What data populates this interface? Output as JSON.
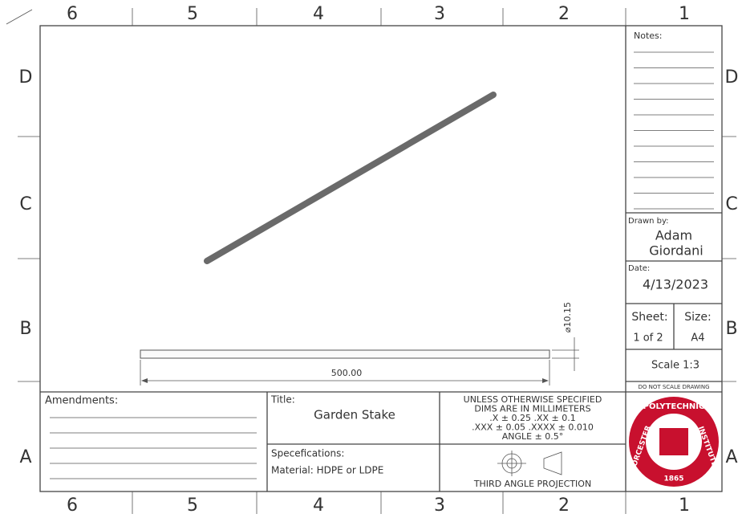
{
  "columns": [
    "6",
    "5",
    "4",
    "3",
    "2",
    "1"
  ],
  "rows": [
    "D",
    "C",
    "B",
    "A"
  ],
  "notes": {
    "label": "Notes:"
  },
  "drawn_by": {
    "label": "Drawn by:",
    "name_line1": "Adam",
    "name_line2": "Giordani"
  },
  "date": {
    "label": "Date:",
    "value": "4/13/2023"
  },
  "sheet": {
    "label": "Sheet:",
    "value": "1 of 2"
  },
  "size": {
    "label": "Size:",
    "value": "A4"
  },
  "scale": "Scale 1:3",
  "warning": "DO NOT SCALE DRAWING",
  "amendments": {
    "label": "Amendments:"
  },
  "title": {
    "label": "Title:",
    "value": "Garden Stake"
  },
  "specifications": {
    "label": "Specefications:",
    "value": "Material: HDPE or LDPE"
  },
  "tolerances": [
    "UNLESS OTHERWISE SPECIFIED",
    "DIMS ARE IN MILLIMETERS",
    ".X ± 0.25   .XX ± 0.1",
    ".XXX ± 0.05   .XXXX ± 0.010",
    "ANGLE ± 0.5°"
  ],
  "projection": "THIRD ANGLE PROJECTION",
  "dimensions": {
    "length": "500.00",
    "diameter": "⌀10.15"
  },
  "logo": {
    "top": "POLYTECHNIC",
    "left": "WORCESTER",
    "right": "INSTITUTE",
    "year": "1865"
  }
}
